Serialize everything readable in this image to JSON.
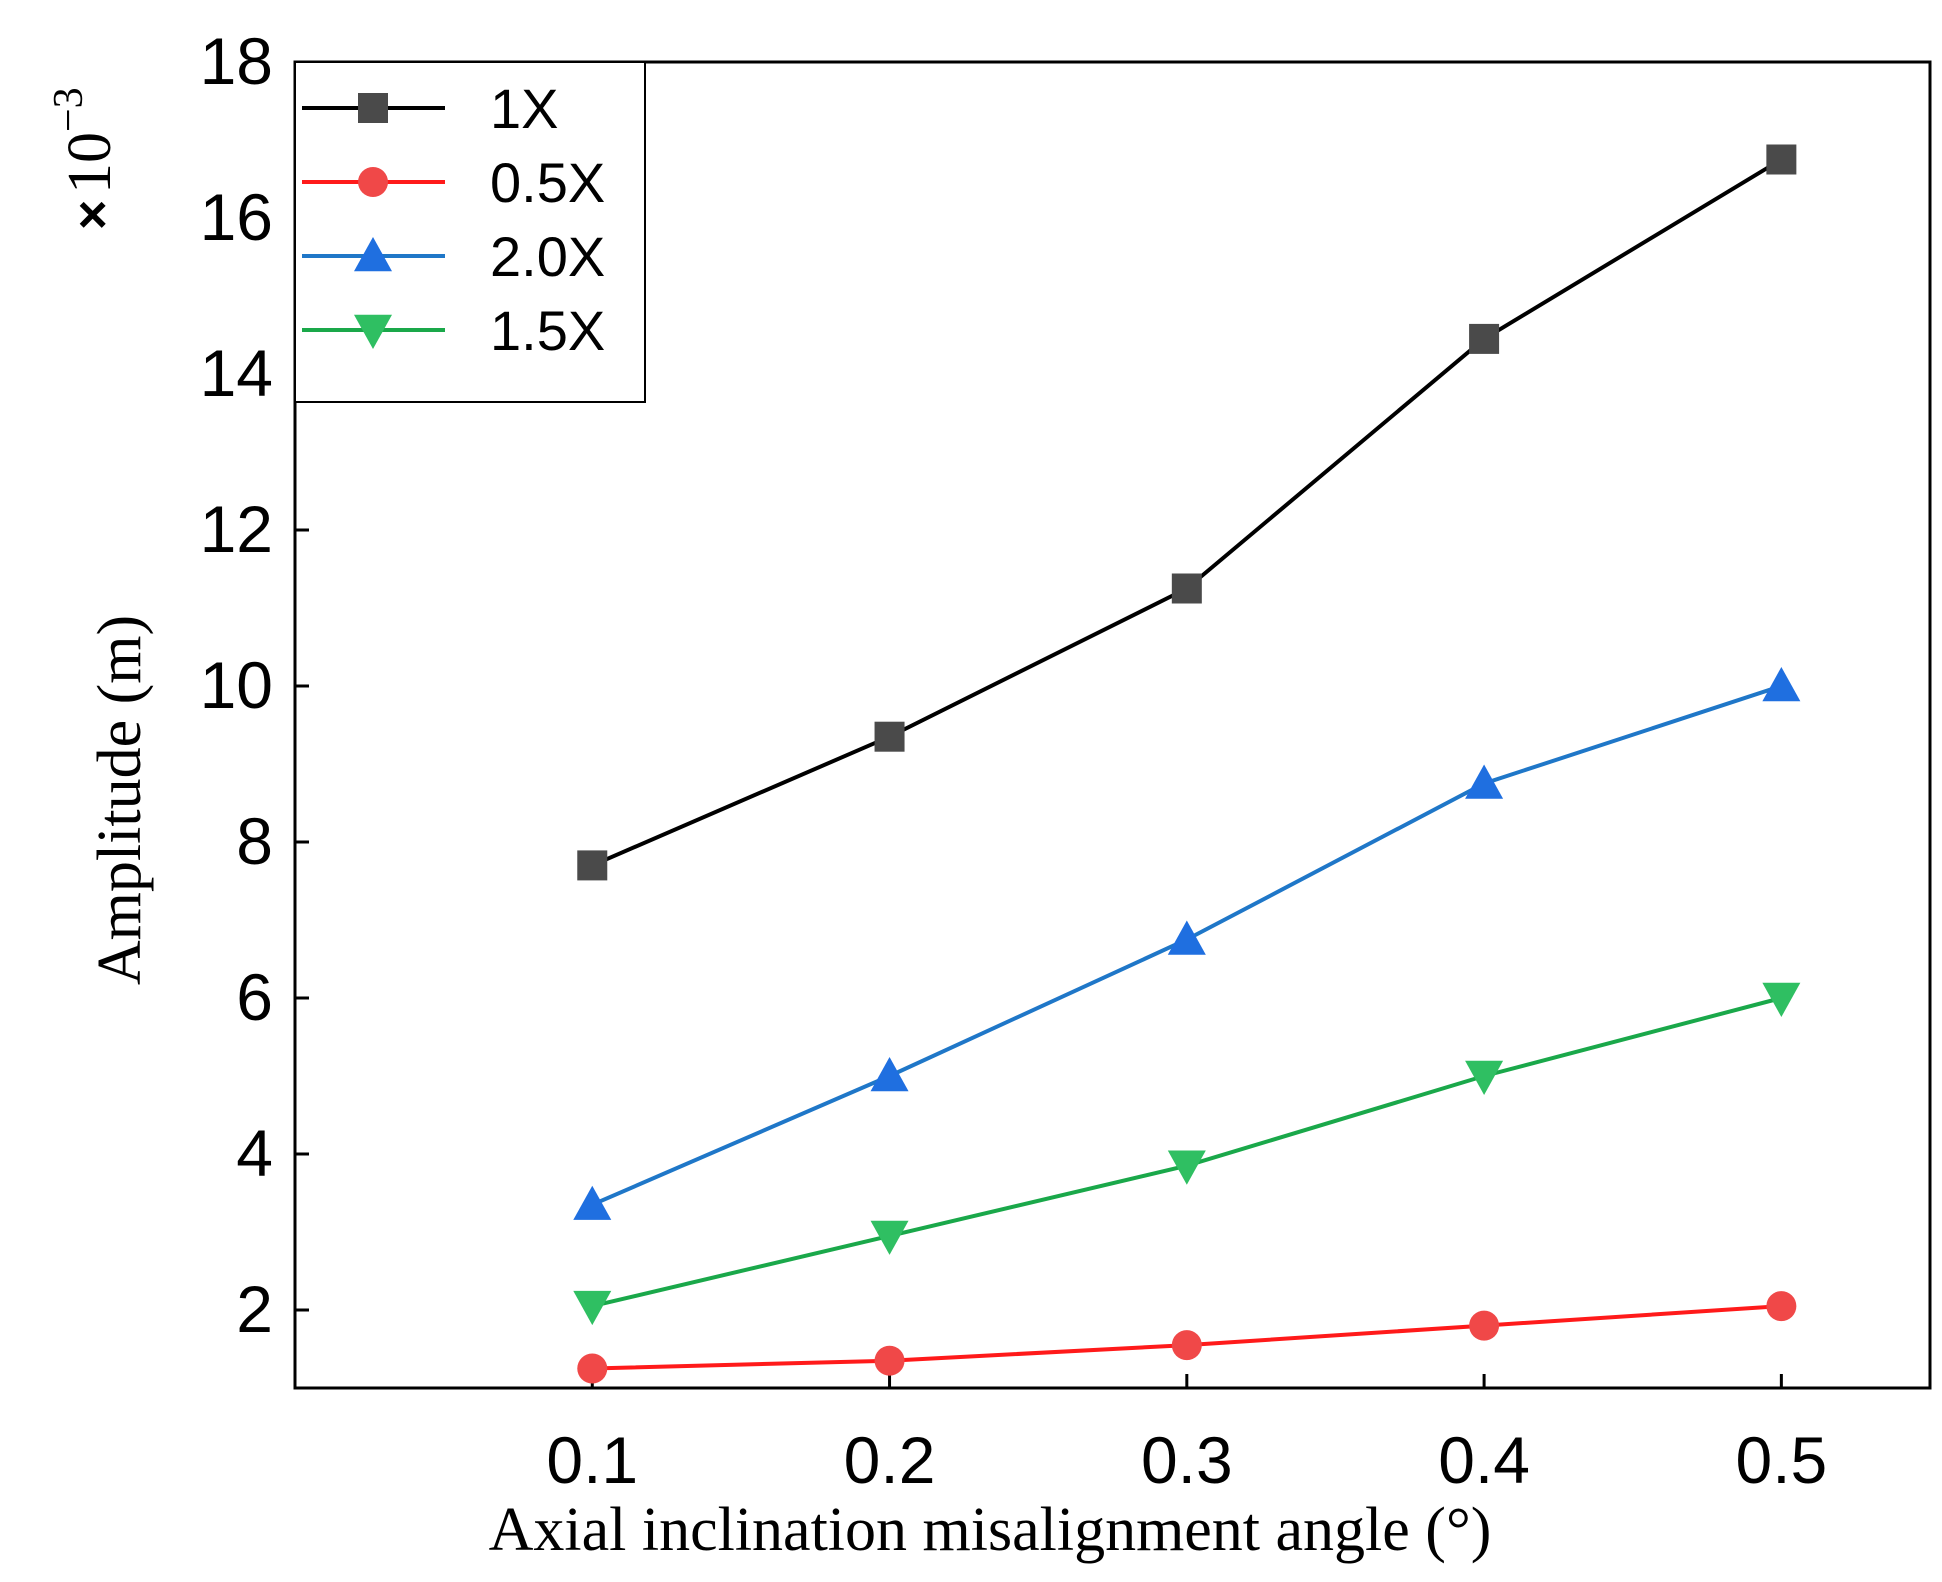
{
  "chart_data": {
    "type": "line",
    "title": "",
    "xlabel": "Axial inclination misalignment angle (°)",
    "ylabel": "Amplitude (m)",
    "y_scale_factor": {
      "times": "×",
      "base": "10",
      "exponent": "−3"
    },
    "x": [
      0.1,
      0.2,
      0.3,
      0.4,
      0.5
    ],
    "xticks": [
      "0.1",
      "0.2",
      "0.3",
      "0.4",
      "0.5"
    ],
    "yticks": [
      "2",
      "4",
      "6",
      "8",
      "10",
      "12",
      "14",
      "16",
      "18"
    ],
    "xlim": [
      0.0,
      0.55
    ],
    "ylim": [
      1.0,
      18.0
    ],
    "grid": false,
    "legend_position": "top-left",
    "series": [
      {
        "name": "1X",
        "color": "#000000",
        "marker_color": "#4a4a4a",
        "marker": "square",
        "values": [
          7.7,
          9.35,
          11.25,
          14.45,
          16.75
        ]
      },
      {
        "name": "0.5X",
        "color": "#ff1a1a",
        "marker_color": "#f04848",
        "marker": "circle",
        "values": [
          1.25,
          1.35,
          1.55,
          1.8,
          2.05
        ]
      },
      {
        "name": "2.0X",
        "color": "#1f77c8",
        "marker_color": "#1f6fe0",
        "marker": "triangle-up",
        "values": [
          3.35,
          5.0,
          6.75,
          8.75,
          10.0
        ]
      },
      {
        "name": "1.5X",
        "color": "#1aa84a",
        "marker_color": "#2fbf62",
        "marker": "triangle-down",
        "values": [
          2.05,
          2.95,
          3.85,
          5.0,
          6.0
        ]
      }
    ]
  }
}
